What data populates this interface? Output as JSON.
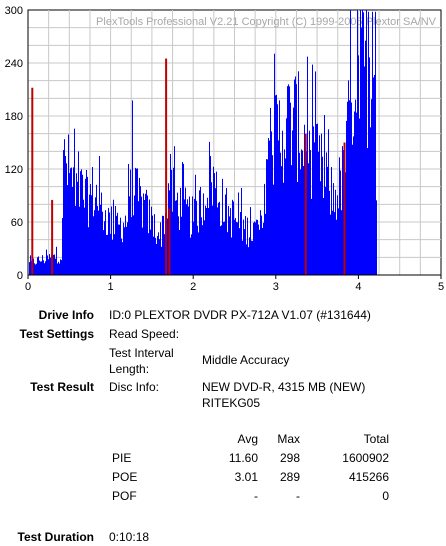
{
  "chart_data": {
    "type": "bar",
    "watermark": "PlexTools Professional V2.21 Copyright (C) 1999-2005 Plextor SA/NV",
    "xlim": [
      0,
      5
    ],
    "ylim": [
      0,
      300
    ],
    "x_ticks": [
      "0",
      "1",
      "2",
      "3",
      "4",
      "5"
    ],
    "y_ticks": [
      "0",
      "60",
      "120",
      "180",
      "240",
      "300"
    ],
    "grid": true,
    "series": [
      {
        "color": "#0000ff",
        "profile": [
          [
            0.0,
            14
          ],
          [
            0.1,
            18
          ],
          [
            0.2,
            20
          ],
          [
            0.3,
            22
          ],
          [
            0.4,
            24
          ],
          [
            0.43,
            150
          ],
          [
            0.5,
            125
          ],
          [
            0.6,
            110
          ],
          [
            0.7,
            95
          ],
          [
            0.8,
            105
          ],
          [
            0.9,
            80
          ],
          [
            1.0,
            65
          ],
          [
            1.1,
            62
          ],
          [
            1.2,
            70
          ],
          [
            1.26,
            125
          ],
          [
            1.3,
            100
          ],
          [
            1.4,
            85
          ],
          [
            1.5,
            65
          ],
          [
            1.6,
            50
          ],
          [
            1.65,
            75
          ],
          [
            1.7,
            115
          ],
          [
            1.8,
            90
          ],
          [
            1.9,
            80
          ],
          [
            2.0,
            70
          ],
          [
            2.1,
            90
          ],
          [
            2.2,
            130
          ],
          [
            2.3,
            100
          ],
          [
            2.4,
            80
          ],
          [
            2.5,
            70
          ],
          [
            2.6,
            60
          ],
          [
            2.7,
            55
          ],
          [
            2.85,
            62
          ],
          [
            2.88,
            160
          ],
          [
            3.0,
            175
          ],
          [
            3.1,
            185
          ],
          [
            3.2,
            195
          ],
          [
            3.3,
            180
          ],
          [
            3.4,
            160
          ],
          [
            3.5,
            140
          ],
          [
            3.6,
            120
          ],
          [
            3.7,
            95
          ],
          [
            3.8,
            120
          ],
          [
            3.86,
            160
          ],
          [
            3.9,
            240
          ],
          [
            4.0,
            250
          ],
          [
            4.1,
            260
          ],
          [
            4.2,
            275
          ],
          [
            4.22,
            0
          ],
          [
            5.0,
            0
          ]
        ],
        "extent": 4.22
      },
      {
        "color": "#c00000",
        "spikes": [
          {
            "x": 0.04,
            "y": 212
          },
          {
            "x": 0.28,
            "y": 85
          },
          {
            "x": 1.66,
            "y": 245
          },
          {
            "x": 1.7,
            "y": 75
          },
          {
            "x": 3.35,
            "y": 160
          },
          {
            "x": 3.82,
            "y": 150
          }
        ]
      }
    ]
  },
  "info": {
    "drive_info_label": "Drive Info",
    "drive_info_value": "ID:0 PLEXTOR DVDR PX-712A V1.07 (#131644)",
    "test_settings_label": "Test Settings",
    "read_speed_label": "Read Speed:",
    "interval_label_1": "Test Interval",
    "interval_label_2": "Length:",
    "interval_value": "Middle Accuracy",
    "test_result_label": "Test Result",
    "disc_info_label": "Disc Info:",
    "disc_info_line1": "NEW DVD-R, 4315 MB (NEW)",
    "disc_info_line2": "RITEKG05",
    "duration_label": "Test Duration",
    "duration_value": "0:10:18"
  },
  "results": {
    "headers": [
      "Avg",
      "Max",
      "Total"
    ],
    "rows": [
      {
        "name": "PIE",
        "avg": "11.60",
        "max": "298",
        "total": "1600902"
      },
      {
        "name": "POE",
        "avg": "3.01",
        "max": "289",
        "total": "415266"
      },
      {
        "name": "POF",
        "avg": "-",
        "max": "-",
        "total": "0"
      }
    ]
  }
}
